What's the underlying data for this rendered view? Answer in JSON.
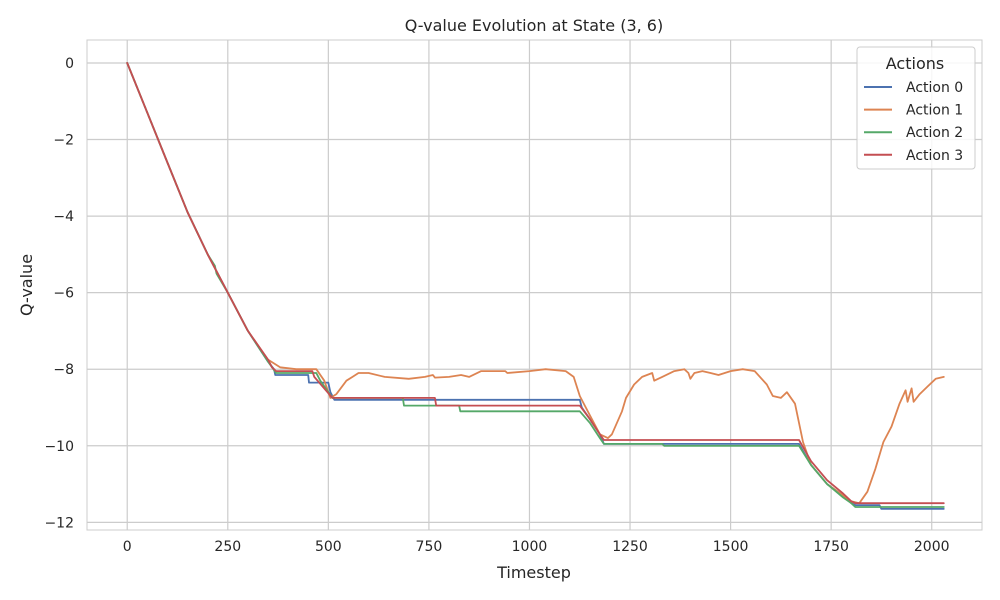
{
  "chart_data": {
    "type": "line",
    "title": "Q-value Evolution at State (3, 6)",
    "xlabel": "Timestep",
    "ylabel": "Q-value",
    "xlim": [
      -100,
      2125
    ],
    "ylim": [
      -12.2,
      0.6
    ],
    "xticks": [
      0,
      250,
      500,
      750,
      1000,
      1250,
      1500,
      1750,
      2000
    ],
    "yticks": [
      0,
      -2,
      -4,
      -6,
      -8,
      -10,
      -12
    ],
    "grid": true,
    "legend": {
      "title": "Actions",
      "placement": "top-right"
    },
    "series": [
      {
        "name": "Action 0",
        "color": "#4c72b0",
        "points": [
          [
            0,
            0
          ],
          [
            50,
            -1.3
          ],
          [
            100,
            -2.6
          ],
          [
            150,
            -3.9
          ],
          [
            200,
            -5.0
          ],
          [
            250,
            -6.0
          ],
          [
            300,
            -7.0
          ],
          [
            350,
            -7.8
          ],
          [
            365,
            -8.0
          ],
          [
            368,
            -8.15
          ],
          [
            450,
            -8.15
          ],
          [
            452,
            -8.35
          ],
          [
            500,
            -8.35
          ],
          [
            505,
            -8.6
          ],
          [
            515,
            -8.8
          ],
          [
            1125,
            -8.8
          ],
          [
            1130,
            -9.0
          ],
          [
            1150,
            -9.3
          ],
          [
            1175,
            -9.7
          ],
          [
            1185,
            -9.95
          ],
          [
            1320,
            -9.95
          ],
          [
            1670,
            -9.95
          ],
          [
            1700,
            -10.5
          ],
          [
            1740,
            -11.0
          ],
          [
            1780,
            -11.3
          ],
          [
            1800,
            -11.5
          ],
          [
            1810,
            -11.55
          ],
          [
            1870,
            -11.55
          ],
          [
            1875,
            -11.65
          ],
          [
            2030,
            -11.65
          ]
        ]
      },
      {
        "name": "Action 1",
        "color": "#dd8452",
        "points": [
          [
            0,
            0
          ],
          [
            50,
            -1.3
          ],
          [
            100,
            -2.6
          ],
          [
            150,
            -3.9
          ],
          [
            200,
            -5.0
          ],
          [
            250,
            -6.0
          ],
          [
            300,
            -7.0
          ],
          [
            350,
            -7.75
          ],
          [
            380,
            -7.95
          ],
          [
            420,
            -8.0
          ],
          [
            470,
            -8.0
          ],
          [
            490,
            -8.3
          ],
          [
            505,
            -8.75
          ],
          [
            520,
            -8.65
          ],
          [
            545,
            -8.3
          ],
          [
            560,
            -8.2
          ],
          [
            575,
            -8.1
          ],
          [
            600,
            -8.1
          ],
          [
            640,
            -8.2
          ],
          [
            700,
            -8.25
          ],
          [
            740,
            -8.2
          ],
          [
            760,
            -8.15
          ],
          [
            765,
            -8.22
          ],
          [
            800,
            -8.2
          ],
          [
            830,
            -8.15
          ],
          [
            850,
            -8.2
          ],
          [
            880,
            -8.05
          ],
          [
            920,
            -8.05
          ],
          [
            940,
            -8.05
          ],
          [
            945,
            -8.1
          ],
          [
            1000,
            -8.05
          ],
          [
            1040,
            -8.0
          ],
          [
            1090,
            -8.05
          ],
          [
            1110,
            -8.2
          ],
          [
            1125,
            -8.7
          ],
          [
            1150,
            -9.2
          ],
          [
            1175,
            -9.7
          ],
          [
            1195,
            -9.8
          ],
          [
            1205,
            -9.7
          ],
          [
            1230,
            -9.1
          ],
          [
            1240,
            -8.75
          ],
          [
            1260,
            -8.4
          ],
          [
            1280,
            -8.2
          ],
          [
            1305,
            -8.1
          ],
          [
            1310,
            -8.3
          ],
          [
            1330,
            -8.2
          ],
          [
            1360,
            -8.05
          ],
          [
            1385,
            -8.0
          ],
          [
            1395,
            -8.1
          ],
          [
            1400,
            -8.25
          ],
          [
            1410,
            -8.1
          ],
          [
            1430,
            -8.05
          ],
          [
            1450,
            -8.1
          ],
          [
            1470,
            -8.15
          ],
          [
            1500,
            -8.05
          ],
          [
            1530,
            -8.0
          ],
          [
            1560,
            -8.05
          ],
          [
            1590,
            -8.4
          ],
          [
            1605,
            -8.7
          ],
          [
            1625,
            -8.75
          ],
          [
            1640,
            -8.6
          ],
          [
            1660,
            -8.9
          ],
          [
            1680,
            -9.9
          ],
          [
            1700,
            -10.5
          ],
          [
            1740,
            -11.0
          ],
          [
            1780,
            -11.3
          ],
          [
            1800,
            -11.45
          ],
          [
            1820,
            -11.5
          ],
          [
            1840,
            -11.2
          ],
          [
            1860,
            -10.6
          ],
          [
            1880,
            -9.9
          ],
          [
            1900,
            -9.5
          ],
          [
            1920,
            -8.9
          ],
          [
            1935,
            -8.55
          ],
          [
            1940,
            -8.85
          ],
          [
            1950,
            -8.5
          ],
          [
            1955,
            -8.85
          ],
          [
            1970,
            -8.65
          ],
          [
            1990,
            -8.45
          ],
          [
            2010,
            -8.25
          ],
          [
            2030,
            -8.2
          ]
        ]
      },
      {
        "name": "Action 2",
        "color": "#55a868",
        "points": [
          [
            0,
            0
          ],
          [
            50,
            -1.3
          ],
          [
            100,
            -2.6
          ],
          [
            150,
            -3.9
          ],
          [
            200,
            -5.0
          ],
          [
            218,
            -5.3
          ],
          [
            222,
            -5.5
          ],
          [
            250,
            -6.0
          ],
          [
            300,
            -7.0
          ],
          [
            350,
            -7.8
          ],
          [
            370,
            -8.1
          ],
          [
            460,
            -8.1
          ],
          [
            470,
            -8.1
          ],
          [
            480,
            -8.3
          ],
          [
            490,
            -8.45
          ],
          [
            510,
            -8.75
          ],
          [
            685,
            -8.75
          ],
          [
            688,
            -8.95
          ],
          [
            825,
            -8.95
          ],
          [
            828,
            -9.1
          ],
          [
            1125,
            -9.1
          ],
          [
            1150,
            -9.4
          ],
          [
            1175,
            -9.8
          ],
          [
            1185,
            -9.95
          ],
          [
            1330,
            -9.95
          ],
          [
            1335,
            -10.0
          ],
          [
            1670,
            -10.0
          ],
          [
            1700,
            -10.5
          ],
          [
            1740,
            -11.0
          ],
          [
            1780,
            -11.35
          ],
          [
            1800,
            -11.5
          ],
          [
            1810,
            -11.6
          ],
          [
            2030,
            -11.6
          ]
        ]
      },
      {
        "name": "Action 3",
        "color": "#c44e52",
        "points": [
          [
            0,
            0
          ],
          [
            50,
            -1.3
          ],
          [
            100,
            -2.6
          ],
          [
            150,
            -3.9
          ],
          [
            200,
            -5.0
          ],
          [
            250,
            -6.0
          ],
          [
            300,
            -7.0
          ],
          [
            350,
            -7.75
          ],
          [
            360,
            -7.95
          ],
          [
            370,
            -8.05
          ],
          [
            460,
            -8.05
          ],
          [
            465,
            -8.2
          ],
          [
            510,
            -8.75
          ],
          [
            765,
            -8.75
          ],
          [
            768,
            -8.95
          ],
          [
            1125,
            -8.95
          ],
          [
            1150,
            -9.3
          ],
          [
            1175,
            -9.7
          ],
          [
            1185,
            -9.85
          ],
          [
            1670,
            -9.85
          ],
          [
            1700,
            -10.4
          ],
          [
            1740,
            -10.9
          ],
          [
            1780,
            -11.25
          ],
          [
            1800,
            -11.45
          ],
          [
            1810,
            -11.5
          ],
          [
            2030,
            -11.5
          ]
        ]
      }
    ]
  }
}
